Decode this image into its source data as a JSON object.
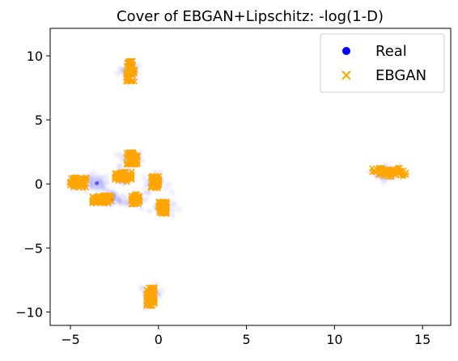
{
  "chart_data": {
    "type": "scatter",
    "title": "Cover of EBGAN+Lipschitz: -log(1-D)",
    "xlabel": "",
    "ylabel": "",
    "xlim": [
      -6.15,
      16.6
    ],
    "ylim": [
      -11.05,
      12.15
    ],
    "xticks": [
      -5,
      0,
      5,
      10,
      15
    ],
    "yticks": [
      -10,
      -5,
      0,
      5,
      10
    ],
    "xtick_labels": [
      "−5",
      "0",
      "5",
      "10",
      "15"
    ],
    "ytick_labels": [
      "−10",
      "−5",
      "0",
      "5",
      "10"
    ],
    "grid": false,
    "legend": {
      "placement": "top-right"
    },
    "series": [
      {
        "name": "Real",
        "marker": "circle",
        "color": "#0000ff",
        "clusters": [
          {
            "x": -1.6,
            "y": 8.8
          },
          {
            "x": -4.4,
            "y": 0.1
          },
          {
            "x": -3.5,
            "y": 0.05
          },
          {
            "x": -2.6,
            "y": -1.2
          },
          {
            "x": -1.6,
            "y": 1.9
          },
          {
            "x": -2.0,
            "y": 0.6
          },
          {
            "x": -1.3,
            "y": -1.2
          },
          {
            "x": -0.2,
            "y": 0.1
          },
          {
            "x": 0.2,
            "y": -1.9
          },
          {
            "x": 13.0,
            "y": 0.85
          },
          {
            "x": -0.4,
            "y": -8.6
          }
        ]
      },
      {
        "name": "EBGAN",
        "marker": "x",
        "color": "#ffa500",
        "clusters": [
          {
            "x": -1.6,
            "y": 8.8,
            "sx": 0.15,
            "sy": 0.5
          },
          {
            "x": -4.55,
            "y": 0.1,
            "sx": 0.3,
            "sy": 0.25
          },
          {
            "x": -3.2,
            "y": -1.2,
            "sx": 0.35,
            "sy": 0.2
          },
          {
            "x": -1.5,
            "y": 2.0,
            "sx": 0.2,
            "sy": 0.3
          },
          {
            "x": -2.0,
            "y": 0.55,
            "sx": 0.3,
            "sy": 0.25
          },
          {
            "x": -1.3,
            "y": -1.2,
            "sx": 0.15,
            "sy": 0.25
          },
          {
            "x": -0.2,
            "y": 0.15,
            "sx": 0.15,
            "sy": 0.3
          },
          {
            "x": 0.25,
            "y": -1.85,
            "sx": 0.15,
            "sy": 0.3
          },
          {
            "x": 13.1,
            "y": 0.9,
            "sx": 0.6,
            "sy": 0.22
          },
          {
            "x": -0.45,
            "y": -8.8,
            "sx": 0.15,
            "sy": 0.45
          }
        ]
      }
    ]
  }
}
